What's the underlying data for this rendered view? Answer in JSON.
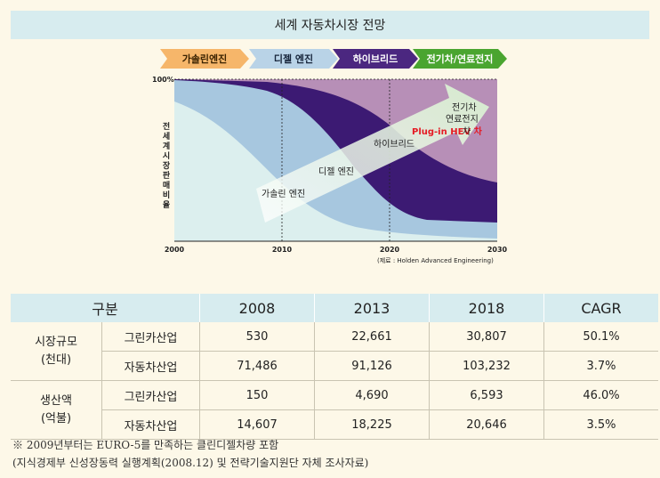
{
  "title": "세계 자동차시장 전망",
  "stages": [
    "가솔린엔진",
    "디젤 엔진",
    "하이브리드",
    "전기차/연료전지"
  ],
  "chart_data": {
    "type": "area",
    "x_ticks": [
      "2000",
      "2010",
      "2020",
      "2030"
    ],
    "y_tick": "100%",
    "ylabel": "전세계시장 판매비율",
    "source": "(제료 : Holden Advanced Engineering)",
    "region_labels": [
      "가솔린 엔진",
      "디젤 엔진",
      "하이브리드",
      "Plug-in HEV 차",
      "전기차",
      "연료전지",
      "차"
    ],
    "colors": {
      "gasoline": "#dcefee",
      "diesel": "#a7c7df",
      "hybrid": "#3c1a73",
      "ev": "#b78fb7",
      "plugin": "#e51b24"
    }
  },
  "table": {
    "headers": [
      "구분",
      "2008",
      "2013",
      "2018",
      "CAGR"
    ],
    "groups": [
      {
        "label1": "시장규모",
        "label2": "(천대)",
        "rows": [
          {
            "type": "그린카산업",
            "v": [
              "530",
              "22,661",
              "30,807",
              "50.1%"
            ]
          },
          {
            "type": "자동차산업",
            "v": [
              "71,486",
              "91,126",
              "103,232",
              "3.7%"
            ]
          }
        ]
      },
      {
        "label1": "생산액",
        "label2": "(억불)",
        "rows": [
          {
            "type": "그린카산업",
            "v": [
              "150",
              "4,690",
              "6,593",
              "46.0%"
            ]
          },
          {
            "type": "자동차산업",
            "v": [
              "14,607",
              "18,225",
              "20,646",
              "3.5%"
            ]
          }
        ]
      }
    ]
  },
  "notes": [
    "※ 2009년부터는 EURO-5를 만족하는 클린디젤차량 포함",
    "(지식경제부 신성장동력 실행계획(2008.12) 및 전략기술지원단 자체 조사자료)"
  ]
}
